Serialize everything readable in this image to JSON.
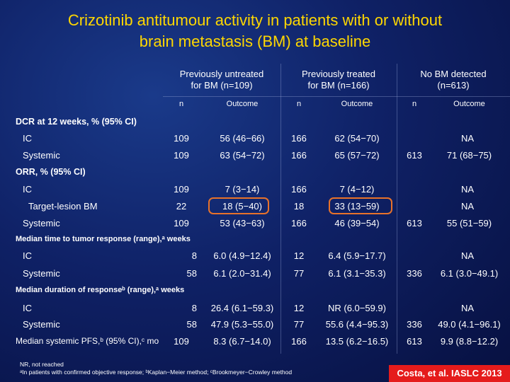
{
  "title": {
    "line1": "Crizotinib antitumour activity in patients with or without",
    "line2": "brain metastasis (BM) at baseline"
  },
  "groups": [
    {
      "line1": "Previously untreated",
      "line2": "for BM (n=109)"
    },
    {
      "line1": "Previously treated",
      "line2": "for BM (n=166)"
    },
    {
      "line1": "No BM detected",
      "line2": "(n=613)"
    }
  ],
  "subheaders": {
    "n": "n",
    "outcome": "Outcome"
  },
  "sections": {
    "dcr": "DCR at 12 weeks, % (95% CI)",
    "orr": "ORR, % (95% CI)",
    "ttr": "Median time to tumor response (range),ᵃ weeks",
    "dor": "Median duration of responseᵇ (range),ᵃ weeks"
  },
  "rows": {
    "dcr_ic": {
      "label": "IC",
      "n1": "109",
      "o1": "56 (46−66)",
      "n2": "166",
      "o2": "62 (54−70)",
      "c3": "NA"
    },
    "dcr_sys": {
      "label": "Systemic",
      "n1": "109",
      "o1": "63 (54−72)",
      "n2": "166",
      "o2": "65 (57−72)",
      "n3": "613",
      "o3": "71 (68−75)"
    },
    "orr_ic": {
      "label": "IC",
      "n1": "109",
      "o1": "7 (3−14)",
      "n2": "166",
      "o2": "7 (4−12)",
      "c3": "NA"
    },
    "orr_tl": {
      "label": "Target-lesion BM",
      "n1": "22",
      "o1": "18 (5−40)",
      "n2": "18",
      "o2": "33 (13−59)",
      "c3": "NA"
    },
    "orr_sys": {
      "label": "Systemic",
      "n1": "109",
      "o1": "53 (43−63)",
      "n2": "166",
      "o2": "46 (39−54)",
      "n3": "613",
      "o3": "55 (51−59)"
    },
    "ttr_ic": {
      "label": "IC",
      "n1": "8",
      "o1": "6.0 (4.9−12.4)",
      "n2": "12",
      "o2": "6.4 (5.9−17.7)",
      "c3": "NA"
    },
    "ttr_sys": {
      "label": "Systemic",
      "n1": "58",
      "o1": "6.1 (2.0−31.4)",
      "n2": "77",
      "o2": "6.1 (3.1−35.3)",
      "n3": "336",
      "o3": "6.1 (3.0−49.1)"
    },
    "dor_ic": {
      "label": "IC",
      "n1": "8",
      "o1": "26.4 (6.1−59.3)",
      "n2": "12",
      "o2": "NR (6.0−59.9)",
      "c3": "NA"
    },
    "dor_sys": {
      "label": "Systemic",
      "n1": "58",
      "o1": "47.9 (5.3−55.0)",
      "n2": "77",
      "o2": "55.6 (4.4−95.3)",
      "n3": "336",
      "o3": "49.0 (4.1−96.1)"
    },
    "pfs": {
      "label": "Median systemic PFS,ᵇ (95% CI),ᶜ mo",
      "n1": "109",
      "o1": "8.3 (6.7−14.0)",
      "n2": "166",
      "o2": "13.5 (6.2−16.5)",
      "n3": "613",
      "o3": "9.9 (8.8−12.2)"
    }
  },
  "footnotes": {
    "line1": "NR, not reached",
    "line2": "ᵃIn patients with confirmed objective response; ᵇKaplan−Meier method; ᶜBrookmeyer−Crowley method"
  },
  "citation": "Costa, et al. IASLC 2013",
  "colors": {
    "title": "#ffd700",
    "background": "#0f2166",
    "highlight": "#e8722a",
    "citation_bg": "#e51b1b"
  }
}
